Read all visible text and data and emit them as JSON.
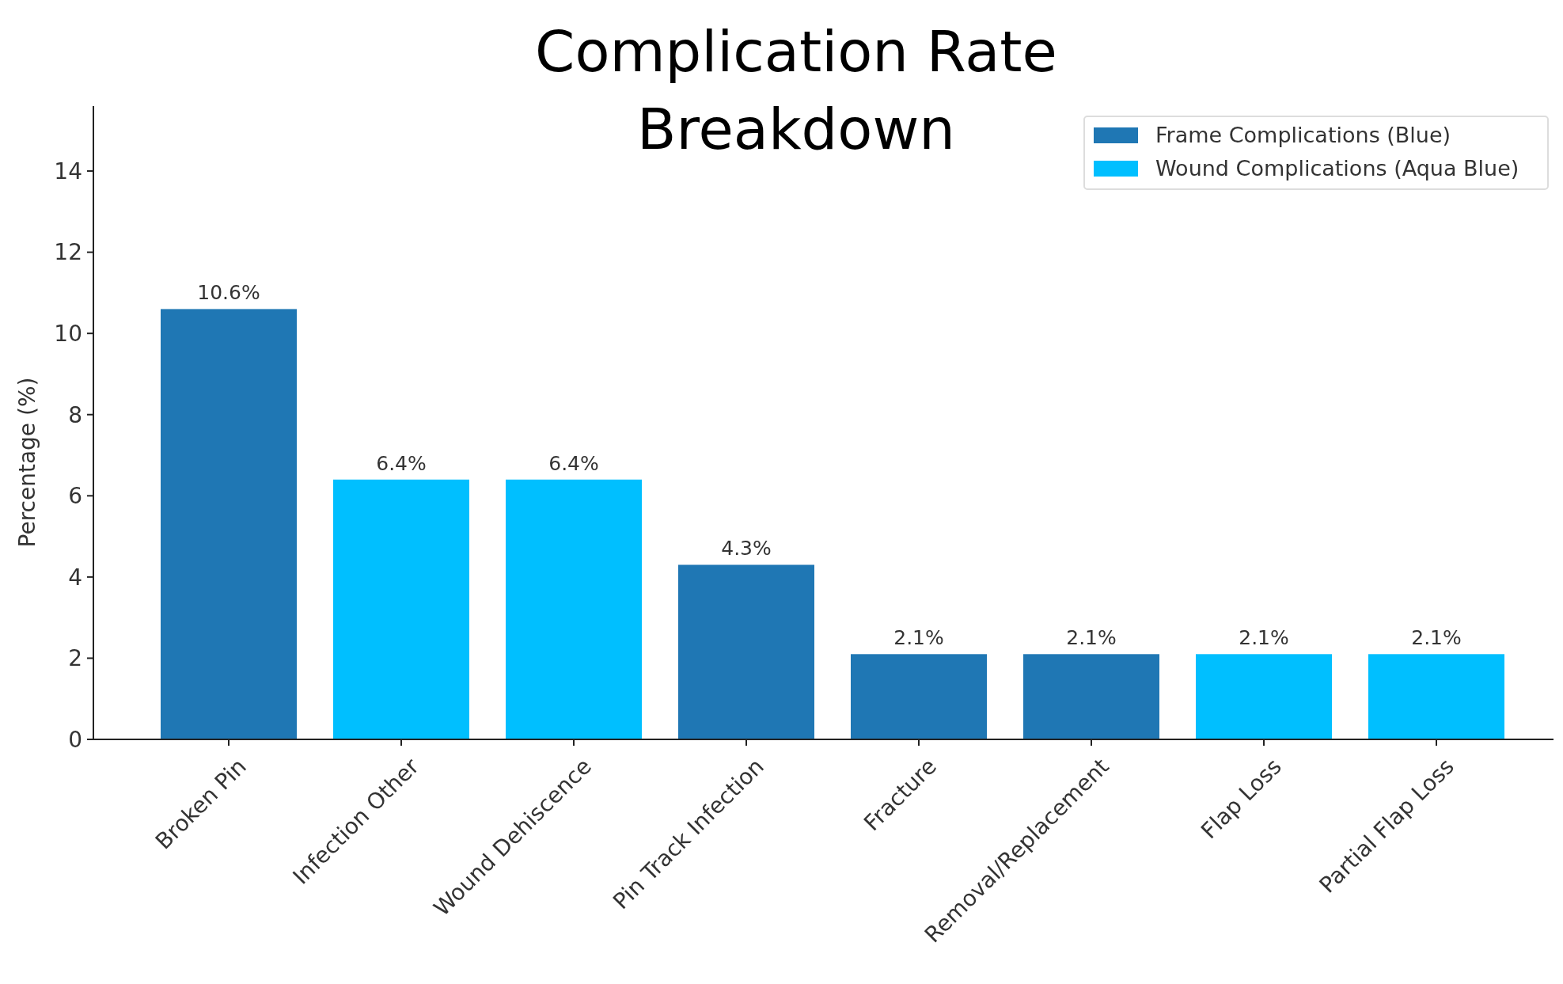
{
  "chart_data": {
    "type": "bar",
    "title": "Complication Rate Breakdown",
    "ylabel": "Percentage (%)",
    "categories": [
      "Broken Pin",
      "Infection Other",
      "Wound Dehiscence",
      "Pin Track Infection",
      "Fracture",
      "Removal/Replacement",
      "Flap Loss",
      "Partial Flap Loss"
    ],
    "series": [
      {
        "name": "Frame Complications (Blue)",
        "color": "#1f77b4",
        "values": [
          10.6,
          null,
          null,
          4.3,
          2.1,
          2.1,
          null,
          null
        ]
      },
      {
        "name": "Wound Complications (Aqua Blue)",
        "color": "#00bfff",
        "values": [
          null,
          6.4,
          6.4,
          null,
          null,
          null,
          2.1,
          2.1
        ]
      }
    ],
    "value_labels": [
      "10.6%",
      "6.4%",
      "6.4%",
      "4.3%",
      "2.1%",
      "2.1%",
      "2.1%",
      "2.1%"
    ],
    "ylim": [
      0,
      15.6
    ],
    "yticks": [
      0,
      2,
      4,
      6,
      8,
      10,
      12,
      14
    ],
    "grid": false,
    "legend": "top right"
  }
}
